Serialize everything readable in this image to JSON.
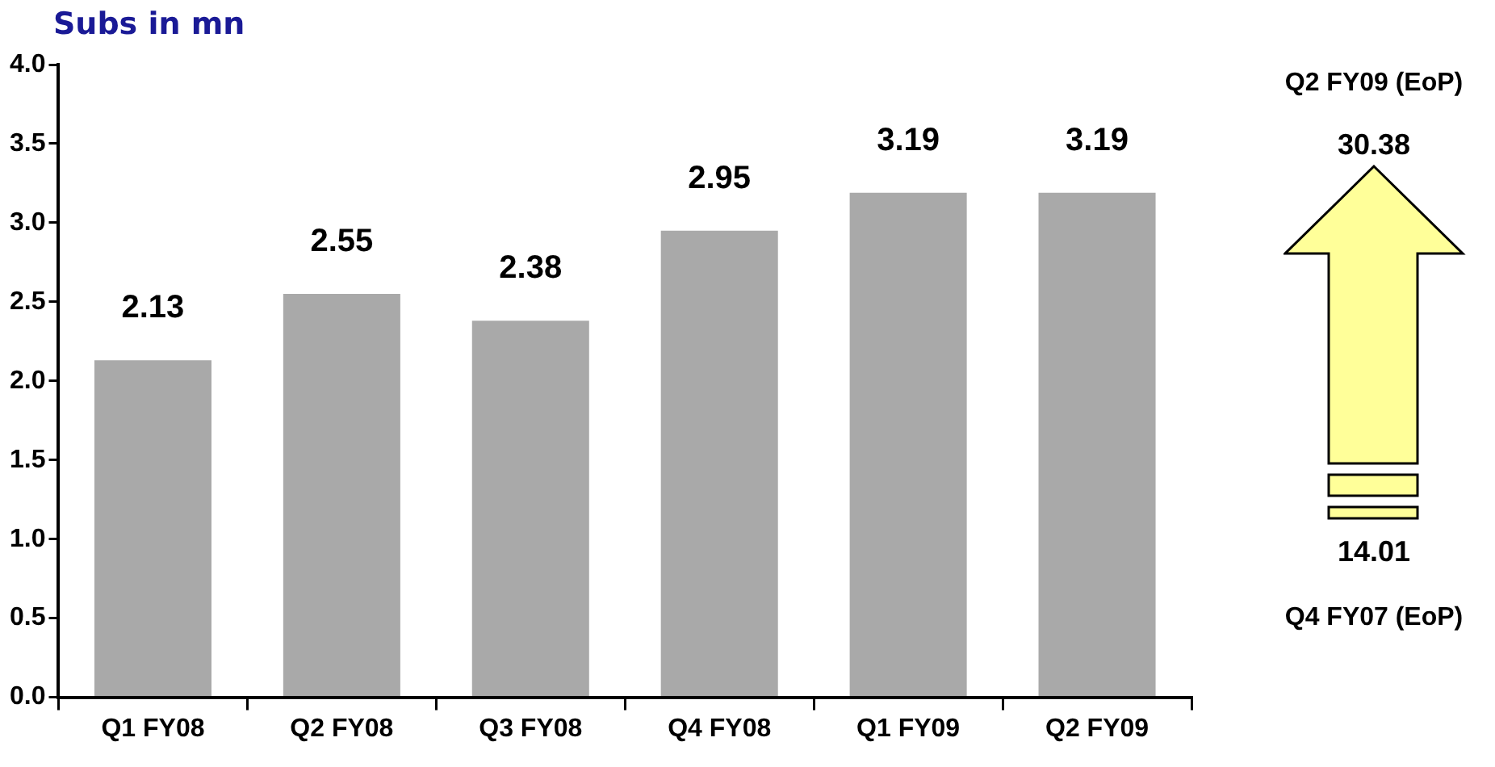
{
  "chart_data": {
    "type": "bar",
    "title": "Subs in mn",
    "categories": [
      "Q1 FY08",
      "Q2 FY08",
      "Q3 FY08",
      "Q4 FY08",
      "Q1 FY09",
      "Q2 FY09"
    ],
    "values": [
      2.13,
      2.55,
      2.38,
      2.95,
      3.19,
      3.19
    ],
    "color": "#a9a9a9",
    "ylim": [
      0,
      4
    ],
    "yticks": [
      {
        "value": 0,
        "label": "0.0"
      },
      {
        "value": 0.5,
        "label": "0.5"
      },
      {
        "value": 1,
        "label": "1.0"
      },
      {
        "value": 1.5,
        "label": "1.5"
      },
      {
        "value": 2,
        "label": "2.0"
      },
      {
        "value": 2.5,
        "label": "2.5"
      },
      {
        "value": 3,
        "label": "3.0"
      },
      {
        "value": 3.5,
        "label": "3.5"
      },
      {
        "value": 4,
        "label": "4.0"
      }
    ],
    "data_labels": true,
    "annotations": [
      "Q2 FY09 (EoP)",
      "30.38",
      "14.01",
      "Q4 FY07 (EoP)"
    ]
  }
}
